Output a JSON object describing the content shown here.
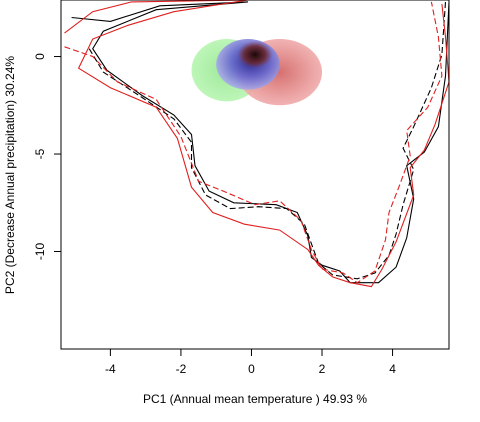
{
  "chart_data": {
    "type": "scatter",
    "title": "",
    "xlabel": "PC1 (Annual mean temperature ) 49.93 %",
    "ylabel": "PC2 (Decrease Annual precipitation) 30.24%",
    "xlim": [
      -5.4,
      5.6
    ],
    "ylim": [
      -15.0,
      2.9
    ],
    "x_ticks": [
      -4,
      -2,
      0,
      2,
      4
    ],
    "x_tick_labels": [
      "-4",
      "-2",
      "0",
      "2",
      "4"
    ],
    "y_ticks": [
      0,
      -5,
      -10
    ],
    "y_tick_labels": [
      "0",
      "-5",
      "-10"
    ],
    "grid": false,
    "legend": "none",
    "series": [
      {
        "style": "solid",
        "color": "#000000",
        "points": [
          [
            -5.1,
            2.0
          ],
          [
            -4.0,
            1.8
          ],
          [
            -2.6,
            2.6
          ],
          [
            -0.1,
            2.8
          ],
          [
            -2.7,
            2.4
          ],
          [
            -4.2,
            1.3
          ],
          [
            -4.5,
            0.4
          ],
          [
            -4.1,
            -0.7
          ],
          [
            -3.1,
            -2.0
          ],
          [
            -2.2,
            -3.0
          ],
          [
            -1.7,
            -4.0
          ],
          [
            -1.6,
            -5.6
          ],
          [
            -1.2,
            -6.9
          ],
          [
            -0.5,
            -7.5
          ],
          [
            0.7,
            -7.6
          ],
          [
            1.3,
            -8.0
          ],
          [
            1.6,
            -9.2
          ],
          [
            1.7,
            -10.3
          ],
          [
            2.0,
            -10.7
          ],
          [
            2.5,
            -11.0
          ],
          [
            2.8,
            -11.6
          ],
          [
            3.6,
            -11.6
          ],
          [
            4.1,
            -10.8
          ],
          [
            4.4,
            -9.3
          ],
          [
            4.6,
            -7.3
          ],
          [
            4.4,
            -5.6
          ],
          [
            4.9,
            -4.9
          ],
          [
            5.3,
            -3.6
          ],
          [
            5.5,
            -1.0
          ],
          [
            5.6,
            2.8
          ]
        ]
      },
      {
        "style": "dashed",
        "color": "#000000",
        "points": [
          [
            -4.6,
            0.4
          ],
          [
            -4.2,
            -0.8
          ],
          [
            -3.1,
            -2.1
          ],
          [
            -2.2,
            -3.2
          ],
          [
            -1.7,
            -4.4
          ],
          [
            -1.7,
            -5.7
          ],
          [
            -1.3,
            -7.1
          ],
          [
            -0.6,
            -7.8
          ],
          [
            0.2,
            -7.7
          ],
          [
            1.0,
            -7.8
          ],
          [
            1.5,
            -8.6
          ],
          [
            1.7,
            -9.6
          ],
          [
            1.9,
            -10.6
          ],
          [
            2.3,
            -11.2
          ],
          [
            3.0,
            -11.4
          ],
          [
            3.5,
            -11.1
          ],
          [
            3.9,
            -10.2
          ],
          [
            4.1,
            -9.1
          ],
          [
            4.3,
            -7.6
          ],
          [
            4.6,
            -5.8
          ],
          [
            4.3,
            -4.7
          ],
          [
            4.6,
            -3.6
          ],
          [
            5.1,
            -1.6
          ],
          [
            5.4,
            0.1
          ],
          [
            5.5,
            2.8
          ]
        ]
      },
      {
        "style": "solid",
        "color": "#e02020",
        "points": [
          [
            -5.3,
            1.2
          ],
          [
            -4.5,
            2.3
          ],
          [
            -3.4,
            2.8
          ],
          [
            -0.1,
            2.9
          ],
          [
            -2.2,
            2.3
          ],
          [
            -3.5,
            1.6
          ],
          [
            -4.5,
            0.9
          ],
          [
            -4.9,
            -0.6
          ],
          [
            -4.0,
            -1.6
          ],
          [
            -2.7,
            -2.6
          ],
          [
            -2.1,
            -4.2
          ],
          [
            -1.7,
            -6.7
          ],
          [
            -1.1,
            -8.0
          ],
          [
            -0.2,
            -8.6
          ],
          [
            0.8,
            -8.9
          ],
          [
            1.6,
            -9.9
          ],
          [
            1.9,
            -10.7
          ],
          [
            2.3,
            -11.3
          ],
          [
            2.8,
            -11.6
          ],
          [
            3.4,
            -11.8
          ],
          [
            3.7,
            -10.9
          ],
          [
            4.1,
            -9.5
          ],
          [
            4.6,
            -7.1
          ],
          [
            4.5,
            -5.7
          ],
          [
            4.9,
            -4.8
          ],
          [
            5.2,
            -3.5
          ],
          [
            5.6,
            -1.3
          ],
          [
            5.5,
            1.0
          ],
          [
            5.4,
            2.7
          ]
        ]
      },
      {
        "style": "dashed",
        "color": "#e02020",
        "points": [
          [
            -5.3,
            0.5
          ],
          [
            -4.5,
            0.0
          ],
          [
            -3.8,
            -1.3
          ],
          [
            -2.7,
            -2.2
          ],
          [
            -2.0,
            -4.1
          ],
          [
            -1.5,
            -6.4
          ],
          [
            -0.8,
            -6.9
          ],
          [
            0.1,
            -7.6
          ],
          [
            0.8,
            -7.4
          ],
          [
            1.4,
            -8.4
          ],
          [
            1.7,
            -9.9
          ],
          [
            2.0,
            -10.9
          ],
          [
            2.6,
            -11.1
          ],
          [
            3.0,
            -11.6
          ],
          [
            3.5,
            -11.0
          ],
          [
            3.8,
            -9.4
          ],
          [
            3.9,
            -8.0
          ],
          [
            4.2,
            -6.6
          ],
          [
            4.5,
            -5.1
          ],
          [
            4.4,
            -3.8
          ],
          [
            5.0,
            -2.6
          ],
          [
            5.4,
            -1.0
          ],
          [
            5.3,
            1.0
          ],
          [
            5.1,
            2.8
          ]
        ]
      }
    ],
    "density_regions": [
      {
        "name_hint": "green",
        "color": "#a8f0a0",
        "center": [
          -0.7,
          -0.7
        ],
        "spread": [
          1.0,
          1.6
        ]
      },
      {
        "name_hint": "red",
        "color": "#e58b8b",
        "center": [
          0.8,
          -0.8
        ],
        "spread": [
          1.2,
          1.7
        ]
      },
      {
        "name_hint": "blue",
        "color": "#6b6bd8",
        "center": [
          -0.1,
          -0.4
        ],
        "spread": [
          0.9,
          1.3
        ]
      },
      {
        "name_hint": "dark-core",
        "color": "#3a1010",
        "center": [
          0.1,
          0.1
        ],
        "spread": [
          0.5,
          0.7
        ]
      }
    ]
  }
}
